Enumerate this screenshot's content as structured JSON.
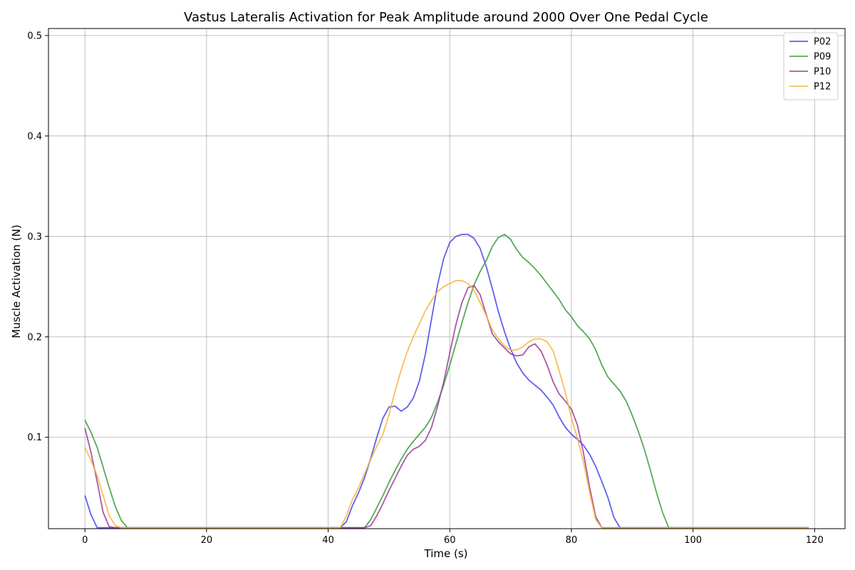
{
  "chart_data": {
    "type": "line",
    "title": "Vastus Lateralis Activation for Peak Amplitude around 2000 Over One Pedal Cycle",
    "xlabel": "Time (s)",
    "ylabel": "Muscle Activation (N)",
    "xlim": [
      -6,
      125
    ],
    "ylim": [
      0.009,
      0.507
    ],
    "xticks": [
      0,
      20,
      40,
      60,
      80,
      100,
      120
    ],
    "xtick_labels": [
      "0",
      "20",
      "40",
      "60",
      "80",
      "100",
      "120"
    ],
    "yticks": [
      0.1,
      0.2,
      0.3,
      0.4,
      0.5
    ],
    "ytick_labels": [
      "0.1",
      "0.2",
      "0.3",
      "0.4",
      "0.5"
    ],
    "grid": true,
    "legend_position": "top-right",
    "series": [
      {
        "name": "P02",
        "color": "#4444ee",
        "points": [
          [
            0,
            0.042
          ],
          [
            1,
            0.023
          ],
          [
            2,
            0.01
          ],
          [
            42,
            0.01
          ],
          [
            43,
            0.016
          ],
          [
            44,
            0.032
          ],
          [
            45,
            0.045
          ],
          [
            46,
            0.06
          ],
          [
            47,
            0.079
          ],
          [
            48,
            0.1
          ],
          [
            49,
            0.119
          ],
          [
            50,
            0.13
          ],
          [
            51,
            0.131
          ],
          [
            52,
            0.126
          ],
          [
            53,
            0.13
          ],
          [
            54,
            0.139
          ],
          [
            55,
            0.156
          ],
          [
            56,
            0.183
          ],
          [
            57,
            0.218
          ],
          [
            58,
            0.252
          ],
          [
            59,
            0.278
          ],
          [
            60,
            0.294
          ],
          [
            61,
            0.3
          ],
          [
            62,
            0.302
          ],
          [
            63,
            0.302
          ],
          [
            64,
            0.298
          ],
          [
            65,
            0.288
          ],
          [
            66,
            0.27
          ],
          [
            67,
            0.248
          ],
          [
            68,
            0.225
          ],
          [
            69,
            0.205
          ],
          [
            70,
            0.188
          ],
          [
            71,
            0.174
          ],
          [
            72,
            0.164
          ],
          [
            73,
            0.157
          ],
          [
            74,
            0.152
          ],
          [
            75,
            0.147
          ],
          [
            76,
            0.14
          ],
          [
            77,
            0.132
          ],
          [
            78,
            0.12
          ],
          [
            79,
            0.11
          ],
          [
            80,
            0.103
          ],
          [
            81,
            0.098
          ],
          [
            82,
            0.092
          ],
          [
            83,
            0.083
          ],
          [
            84,
            0.071
          ],
          [
            85,
            0.056
          ],
          [
            86,
            0.04
          ],
          [
            87,
            0.02
          ],
          [
            88,
            0.01
          ],
          [
            119,
            0.01
          ]
        ]
      },
      {
        "name": "P09",
        "color": "#3a9a3a",
        "points": [
          [
            0,
            0.117
          ],
          [
            1,
            0.105
          ],
          [
            2,
            0.09
          ],
          [
            3,
            0.07
          ],
          [
            4,
            0.05
          ],
          [
            5,
            0.031
          ],
          [
            6,
            0.017
          ],
          [
            7,
            0.01
          ],
          [
            46,
            0.01
          ],
          [
            47,
            0.018
          ],
          [
            48,
            0.03
          ],
          [
            49,
            0.042
          ],
          [
            50,
            0.055
          ],
          [
            51,
            0.067
          ],
          [
            52,
            0.078
          ],
          [
            53,
            0.088
          ],
          [
            54,
            0.096
          ],
          [
            55,
            0.103
          ],
          [
            56,
            0.11
          ],
          [
            57,
            0.12
          ],
          [
            58,
            0.135
          ],
          [
            59,
            0.152
          ],
          [
            60,
            0.172
          ],
          [
            61,
            0.193
          ],
          [
            62,
            0.214
          ],
          [
            63,
            0.234
          ],
          [
            64,
            0.252
          ],
          [
            65,
            0.265
          ],
          [
            66,
            0.276
          ],
          [
            67,
            0.29
          ],
          [
            68,
            0.299
          ],
          [
            69,
            0.302
          ],
          [
            70,
            0.297
          ],
          [
            71,
            0.287
          ],
          [
            72,
            0.279
          ],
          [
            73,
            0.274
          ],
          [
            74,
            0.268
          ],
          [
            75,
            0.261
          ],
          [
            76,
            0.253
          ],
          [
            77,
            0.245
          ],
          [
            78,
            0.237
          ],
          [
            79,
            0.227
          ],
          [
            80,
            0.22
          ],
          [
            81,
            0.211
          ],
          [
            82,
            0.205
          ],
          [
            83,
            0.198
          ],
          [
            84,
            0.187
          ],
          [
            85,
            0.172
          ],
          [
            86,
            0.16
          ],
          [
            87,
            0.153
          ],
          [
            88,
            0.146
          ],
          [
            89,
            0.136
          ],
          [
            90,
            0.122
          ],
          [
            91,
            0.106
          ],
          [
            92,
            0.088
          ],
          [
            93,
            0.067
          ],
          [
            94,
            0.045
          ],
          [
            95,
            0.025
          ],
          [
            96,
            0.01
          ],
          [
            119,
            0.01
          ]
        ]
      },
      {
        "name": "P10",
        "color": "#9a3a9a",
        "points": [
          [
            0,
            0.109
          ],
          [
            1,
            0.085
          ],
          [
            2,
            0.056
          ],
          [
            3,
            0.025
          ],
          [
            4,
            0.011
          ],
          [
            5,
            0.01
          ],
          [
            46,
            0.01
          ],
          [
            47,
            0.012
          ],
          [
            48,
            0.022
          ],
          [
            49,
            0.034
          ],
          [
            50,
            0.047
          ],
          [
            51,
            0.059
          ],
          [
            52,
            0.071
          ],
          [
            53,
            0.082
          ],
          [
            54,
            0.088
          ],
          [
            55,
            0.091
          ],
          [
            56,
            0.097
          ],
          [
            57,
            0.11
          ],
          [
            58,
            0.131
          ],
          [
            59,
            0.155
          ],
          [
            60,
            0.184
          ],
          [
            61,
            0.212
          ],
          [
            62,
            0.234
          ],
          [
            63,
            0.249
          ],
          [
            64,
            0.251
          ],
          [
            65,
            0.242
          ],
          [
            66,
            0.222
          ],
          [
            67,
            0.203
          ],
          [
            68,
            0.195
          ],
          [
            69,
            0.189
          ],
          [
            70,
            0.183
          ],
          [
            71,
            0.181
          ],
          [
            72,
            0.182
          ],
          [
            73,
            0.19
          ],
          [
            74,
            0.193
          ],
          [
            75,
            0.186
          ],
          [
            76,
            0.172
          ],
          [
            77,
            0.155
          ],
          [
            78,
            0.143
          ],
          [
            79,
            0.136
          ],
          [
            80,
            0.128
          ],
          [
            81,
            0.112
          ],
          [
            82,
            0.084
          ],
          [
            83,
            0.05
          ],
          [
            84,
            0.021
          ],
          [
            85,
            0.01
          ],
          [
            119,
            0.01
          ]
        ]
      },
      {
        "name": "P12",
        "color": "#f5b43a",
        "points": [
          [
            0,
            0.09
          ],
          [
            1,
            0.077
          ],
          [
            2,
            0.062
          ],
          [
            3,
            0.042
          ],
          [
            4,
            0.022
          ],
          [
            5,
            0.012
          ],
          [
            6,
            0.01
          ],
          [
            42,
            0.01
          ],
          [
            43,
            0.022
          ],
          [
            44,
            0.038
          ],
          [
            45,
            0.05
          ],
          [
            46,
            0.064
          ],
          [
            47,
            0.078
          ],
          [
            48,
            0.091
          ],
          [
            49,
            0.103
          ],
          [
            50,
            0.122
          ],
          [
            51,
            0.146
          ],
          [
            52,
            0.167
          ],
          [
            53,
            0.185
          ],
          [
            54,
            0.2
          ],
          [
            55,
            0.213
          ],
          [
            56,
            0.226
          ],
          [
            57,
            0.236
          ],
          [
            58,
            0.245
          ],
          [
            59,
            0.25
          ],
          [
            60,
            0.253
          ],
          [
            61,
            0.256
          ],
          [
            62,
            0.256
          ],
          [
            63,
            0.253
          ],
          [
            64,
            0.246
          ],
          [
            65,
            0.234
          ],
          [
            66,
            0.221
          ],
          [
            67,
            0.207
          ],
          [
            68,
            0.198
          ],
          [
            69,
            0.191
          ],
          [
            70,
            0.187
          ],
          [
            71,
            0.187
          ],
          [
            72,
            0.19
          ],
          [
            73,
            0.195
          ],
          [
            74,
            0.198
          ],
          [
            75,
            0.198
          ],
          [
            76,
            0.195
          ],
          [
            77,
            0.186
          ],
          [
            78,
            0.166
          ],
          [
            79,
            0.145
          ],
          [
            80,
            0.119
          ],
          [
            81,
            0.099
          ],
          [
            82,
            0.075
          ],
          [
            83,
            0.045
          ],
          [
            84,
            0.018
          ],
          [
            85,
            0.01
          ],
          [
            119,
            0.01
          ]
        ]
      }
    ]
  }
}
